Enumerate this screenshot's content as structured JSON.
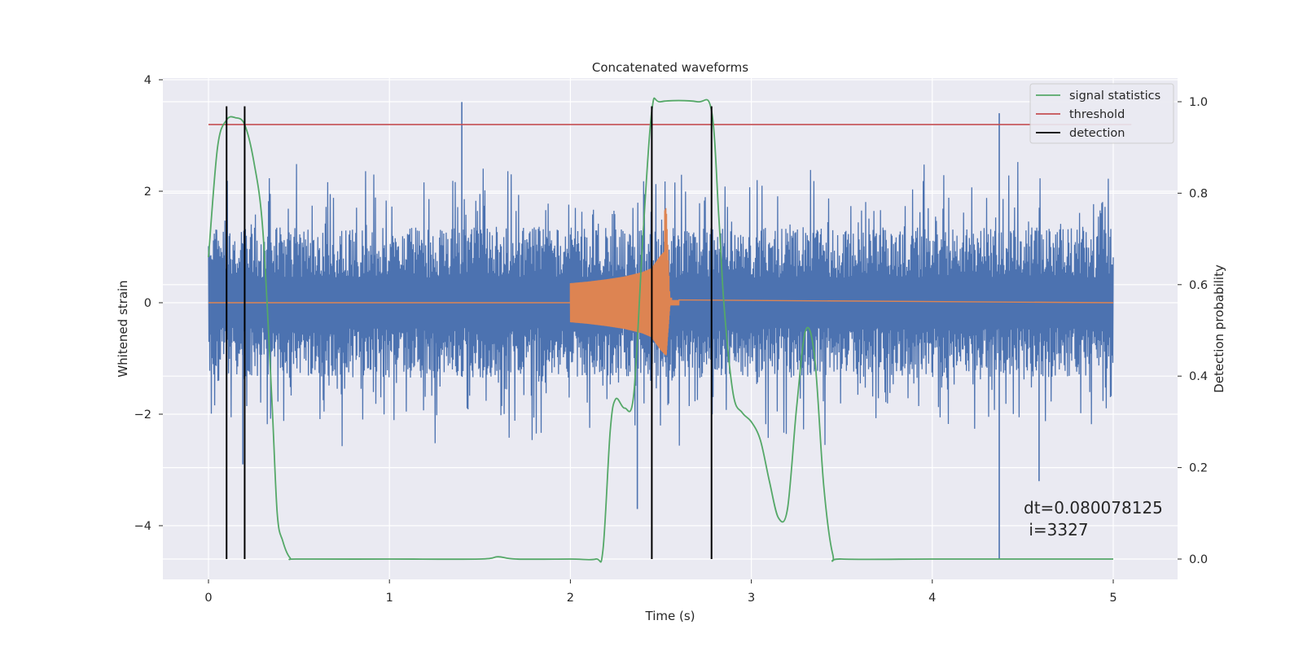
{
  "chart_data": {
    "type": "line",
    "title": "Concatenated waveforms",
    "xlabel": "Time (s)",
    "ylabel": "Whitened strain",
    "ylabel_right": "Detection probability",
    "xlim": [
      -0.25,
      5.35
    ],
    "ylim_left": [
      -5.0,
      4.0
    ],
    "ylim_right": [
      -0.05,
      1.03
    ],
    "xticks": [
      0,
      1,
      2,
      3,
      4,
      5
    ],
    "yticks_left": [
      -4,
      -2,
      0,
      2,
      4
    ],
    "yticks_right": [
      0.0,
      0.2,
      0.4,
      0.6,
      0.8,
      1.0
    ],
    "ytick_labels_left": [
      "−4",
      "−2",
      "0",
      "2",
      "4"
    ],
    "ytick_labels_right": [
      "0.0",
      "0.2",
      "0.4",
      "0.6",
      "0.8",
      "1.0"
    ],
    "grid": true,
    "legend_position": "top-right",
    "annotation": [
      "dt=0.080078125",
      " i=3327"
    ],
    "series": [
      {
        "name": "signal statistics",
        "axis": "right",
        "color": "#55a868",
        "x": [
          0.0,
          0.05,
          0.1,
          0.15,
          0.2,
          0.25,
          0.3,
          0.35,
          0.38,
          0.41,
          0.45,
          0.5,
          1.0,
          1.5,
          1.6,
          1.7,
          2.0,
          2.14,
          2.18,
          2.22,
          2.25,
          2.3,
          2.35,
          2.4,
          2.45,
          2.5,
          2.7,
          2.78,
          2.82,
          2.85,
          2.9,
          2.95,
          3.0,
          3.05,
          3.1,
          3.15,
          3.2,
          3.25,
          3.3,
          3.35,
          3.4,
          3.45,
          3.5,
          4.0,
          4.5,
          5.0
        ],
        "y": [
          0.66,
          0.9,
          0.96,
          0.965,
          0.95,
          0.87,
          0.72,
          0.35,
          0.1,
          0.04,
          0.003,
          0.0,
          0.0,
          0.0,
          0.005,
          0.0,
          0.0,
          0.0,
          0.02,
          0.28,
          0.35,
          0.33,
          0.36,
          0.7,
          0.98,
          1.0,
          1.0,
          0.98,
          0.75,
          0.55,
          0.36,
          0.32,
          0.3,
          0.26,
          0.17,
          0.09,
          0.11,
          0.33,
          0.5,
          0.44,
          0.16,
          0.01,
          0.0,
          0.0,
          0.0,
          0.0
        ]
      },
      {
        "name": "threshold",
        "axis": "right",
        "color": "#c44e52",
        "x": [
          0.0,
          5.1
        ],
        "y": [
          0.95,
          0.95
        ]
      },
      {
        "name": "detection",
        "axis": "right",
        "type": "vertical-lines",
        "color": "#000000",
        "x": [
          0.1,
          0.2,
          2.45,
          2.78
        ],
        "y_range": [
          0.0,
          0.99
        ]
      },
      {
        "name": "",
        "axis": "left",
        "color": "#4c72b0",
        "description_envelope": true,
        "x_range": [
          0.0,
          5.0
        ],
        "typical_amplitude": 1.3,
        "peak_y": [
          3.6,
          -4.6
        ],
        "spikes": [
          {
            "x": 1.4,
            "y": 3.6
          },
          {
            "x": 4.37,
            "y": 3.4
          },
          {
            "x": 4.37,
            "y": -4.6
          },
          {
            "x": 2.37,
            "y": -3.7
          },
          {
            "x": 0.19,
            "y": -2.9
          },
          {
            "x": 4.59,
            "y": -3.2
          }
        ]
      },
      {
        "name": "",
        "axis": "left",
        "color": "#dd8452",
        "type": "chirp",
        "x": [
          2.0,
          2.1,
          2.2,
          2.3,
          2.4,
          2.45,
          2.5,
          2.53,
          2.55,
          5.0
        ],
        "amplitude": [
          0.35,
          0.38,
          0.42,
          0.47,
          0.55,
          0.62,
          0.85,
          0.95,
          0.05,
          0.0
        ]
      }
    ]
  }
}
